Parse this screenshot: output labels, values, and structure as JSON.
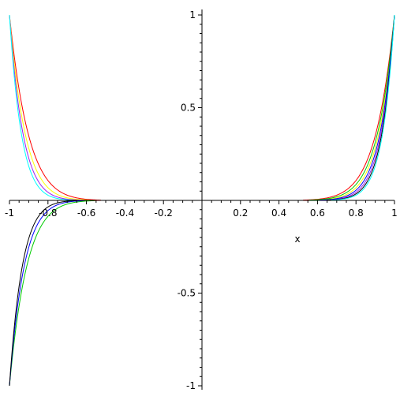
{
  "chart_data": {
    "type": "line",
    "title": "",
    "xlabel": "x",
    "ylabel": "",
    "xlim": [
      -1,
      1
    ],
    "ylim": [
      -1,
      1
    ],
    "grid": false,
    "legend": "none",
    "x_ticks": [
      "-1",
      "-0.8",
      "-0.6",
      "-0.4",
      "-0.2",
      "0.2",
      "0.4",
      "0.6",
      "0.8",
      "1"
    ],
    "y_ticks": [
      "1",
      "0.5",
      "-0.5",
      "-1"
    ],
    "series": [
      {
        "color": "#ff0000",
        "exponent": 10
      },
      {
        "color": "#ffff00",
        "exponent": 12
      },
      {
        "color": "#a020f0",
        "exponent": 14
      },
      {
        "color": "#00cc00",
        "exponent": 11
      },
      {
        "color": "#0000ff",
        "exponent": 13
      },
      {
        "color": "#000000",
        "exponent": 15
      },
      {
        "color": "#00ffff",
        "exponent": 16
      }
    ]
  }
}
